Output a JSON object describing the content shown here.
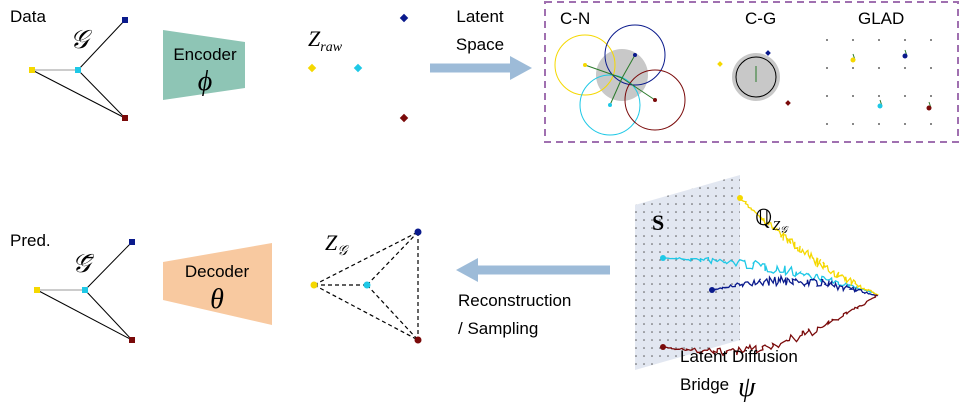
{
  "top": {
    "data_label": "Data",
    "graph_symbol": "𝒢",
    "encoder": {
      "label": "Encoder",
      "symbol": "ϕ"
    },
    "latent": {
      "base": "Z",
      "sub": "raw"
    },
    "arrow_label": [
      "Latent",
      "Space"
    ],
    "panels": [
      "C-N",
      "C-G",
      "GLAD"
    ]
  },
  "bottom": {
    "pred_label": "Pred.",
    "graph_symbol": "𝒢̄",
    "decoder": {
      "label": "Decoder",
      "symbol": "θ"
    },
    "latent": {
      "base": "Z",
      "sub": "𝒢"
    },
    "arrow_label": [
      "Reconstruction",
      "/ Sampling"
    ],
    "plane_label": "S",
    "bridge_measure": {
      "base": "ℚ",
      "sub": "Z",
      "subsub": "𝒢"
    },
    "bridge_label": [
      "Latent Diffusion",
      "Bridge"
    ],
    "bridge_symbol": "ψ"
  }
}
